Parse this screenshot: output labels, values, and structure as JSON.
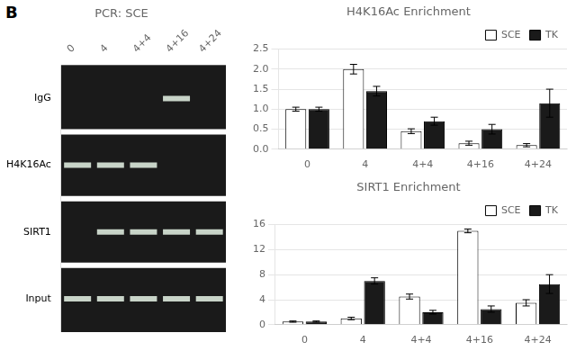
{
  "chart_data": [
    {
      "type": "gel",
      "title": "PCR: SCE",
      "annotations": [
        "B"
      ],
      "categories": [
        "0",
        "4",
        "4+4",
        "4+16",
        "4+24"
      ],
      "rows": [
        "IgG",
        "H4K16Ac",
        "SIRT1",
        "Input"
      ],
      "cells": [
        [
          false,
          false,
          false,
          true,
          false
        ],
        [
          true,
          true,
          true,
          false,
          false
        ],
        [
          false,
          true,
          true,
          true,
          true
        ],
        [
          true,
          true,
          true,
          true,
          true
        ]
      ],
      "grid": false
    },
    {
      "type": "bar",
      "title": "H4K16Ac Enrichment",
      "categories": [
        "0",
        "4",
        "4+4",
        "4+16",
        "4+24"
      ],
      "series": [
        {
          "name": "SCE",
          "color": "#ffffff",
          "values": [
            1.0,
            2.0,
            0.45,
            0.15,
            0.1
          ],
          "errors": [
            0.05,
            0.12,
            0.06,
            0.05,
            0.04
          ]
        },
        {
          "name": "TK",
          "color": "#1a1a1a",
          "values": [
            1.0,
            1.45,
            0.7,
            0.5,
            1.15
          ],
          "errors": [
            0.05,
            0.12,
            0.1,
            0.12,
            0.35
          ]
        }
      ],
      "ylim": [
        0.0,
        2.5
      ],
      "yticks": [
        {
          "value": 0,
          "label": "0.0"
        },
        0.5,
        {
          "value": 1,
          "label": "1.0"
        },
        1.5,
        {
          "value": 2,
          "label": "2.0"
        },
        2.5
      ],
      "grid": true,
      "legend": "upper right"
    },
    {
      "type": "bar",
      "title": "SIRT1 Enrichment",
      "categories": [
        "0",
        "4",
        "4+4",
        "4+16",
        "4+24"
      ],
      "series": [
        {
          "name": "SCE",
          "color": "#ffffff",
          "values": [
            0.5,
            1.0,
            4.5,
            15.0,
            3.5
          ],
          "errors": [
            0.1,
            0.2,
            0.4,
            0.3,
            0.5
          ]
        },
        {
          "name": "TK",
          "color": "#1a1a1a",
          "values": [
            0.5,
            7.0,
            2.0,
            2.5,
            6.5
          ],
          "errors": [
            0.1,
            0.5,
            0.3,
            0.5,
            1.5
          ]
        }
      ],
      "ylim": [
        0.0,
        16.0
      ],
      "yticks": [
        0,
        4,
        8,
        12,
        16
      ],
      "grid": true,
      "legend": "upper right"
    }
  ]
}
